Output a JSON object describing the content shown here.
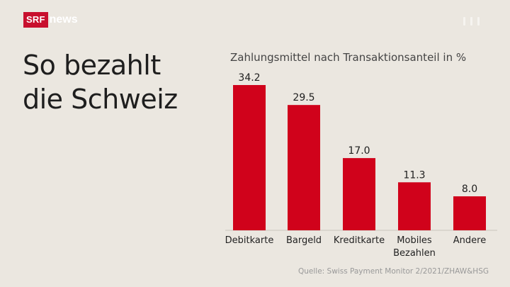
{
  "brand": {
    "logo_srf": "SRF",
    "logo_news": "news"
  },
  "headline": {
    "line1": "So bezahlt",
    "line2": "die Schweiz"
  },
  "chart_data": {
    "type": "bar",
    "title": "Zahlungsmittel nach Transaktionsanteil in %",
    "categories": [
      "Debitkarte",
      "Bargeld",
      "Kreditkarte",
      "Mobiles Bezahlen",
      "Andere"
    ],
    "category_lines": [
      [
        "Debitkarte"
      ],
      [
        "Bargeld"
      ],
      [
        "Kreditkarte"
      ],
      [
        "Mobiles",
        "Bezahlen"
      ],
      [
        "Andere"
      ]
    ],
    "values": [
      34.2,
      29.5,
      17.0,
      11.3,
      8.0
    ],
    "value_labels": [
      "34.2",
      "29.5",
      "17.0",
      "11.3",
      "8.0"
    ],
    "bar_color": "#d0021b",
    "ylim": [
      0,
      34.2
    ],
    "grid": false,
    "xlabel": "",
    "ylabel": ""
  },
  "source": "Quelle: Swiss Payment Monitor 2/2021/ZHAW&HSG"
}
